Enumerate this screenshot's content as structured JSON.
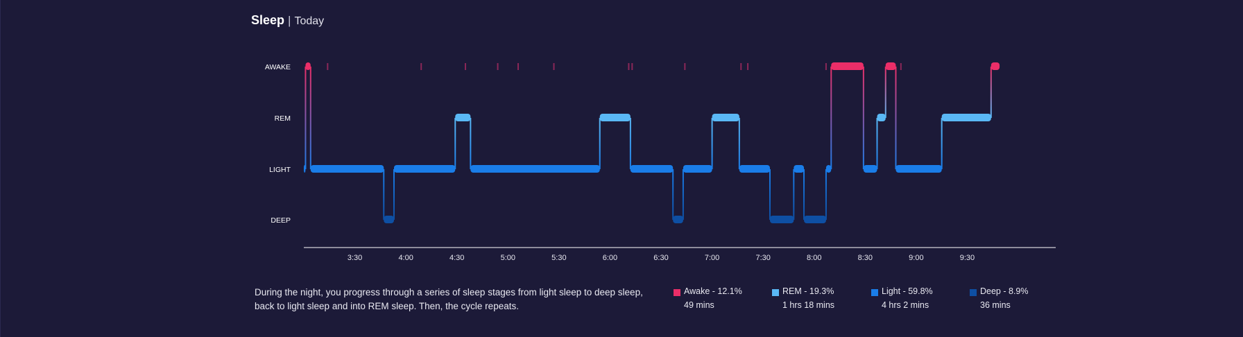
{
  "header": {
    "title": "Sleep",
    "separator": "|",
    "subtitle": "Today"
  },
  "colors": {
    "background": "#1c1a38",
    "awake": "#ea2e68",
    "rem": "#5ab8f5",
    "light": "#1a7de8",
    "deep": "#0e4fa3",
    "awake_tick": "#8a2758"
  },
  "chart_data": {
    "type": "line",
    "title": "Sleep",
    "subtitle": "Today",
    "stages": [
      "AWAKE",
      "REM",
      "LIGHT",
      "DEEP"
    ],
    "x_ticks": [
      "3:30",
      "4:00",
      "4:30",
      "5:00",
      "5:30",
      "6:00",
      "6:30",
      "7:00",
      "7:30",
      "8:00",
      "8:30",
      "9:00",
      "9:30"
    ],
    "x_range": [
      "3:00",
      "10:22"
    ],
    "grid": false,
    "segments": [
      {
        "stage": "LIGHT",
        "start": "3:00",
        "end": "3:01"
      },
      {
        "stage": "AWAKE",
        "start": "3:01",
        "end": "3:04"
      },
      {
        "stage": "LIGHT",
        "start": "3:04",
        "end": "3:47"
      },
      {
        "stage": "DEEP",
        "start": "3:47",
        "end": "3:53"
      },
      {
        "stage": "LIGHT",
        "start": "3:53",
        "end": "4:29"
      },
      {
        "stage": "REM",
        "start": "4:29",
        "end": "4:38"
      },
      {
        "stage": "LIGHT",
        "start": "4:38",
        "end": "5:54"
      },
      {
        "stage": "REM",
        "start": "5:54",
        "end": "6:12"
      },
      {
        "stage": "LIGHT",
        "start": "6:12",
        "end": "6:37"
      },
      {
        "stage": "DEEP",
        "start": "6:37",
        "end": "6:43"
      },
      {
        "stage": "LIGHT",
        "start": "6:43",
        "end": "7:00"
      },
      {
        "stage": "REM",
        "start": "7:00",
        "end": "7:16"
      },
      {
        "stage": "LIGHT",
        "start": "7:16",
        "end": "7:34"
      },
      {
        "stage": "DEEP",
        "start": "7:34",
        "end": "7:48"
      },
      {
        "stage": "LIGHT",
        "start": "7:48",
        "end": "7:54"
      },
      {
        "stage": "DEEP",
        "start": "7:54",
        "end": "8:07"
      },
      {
        "stage": "LIGHT",
        "start": "8:07",
        "end": "8:10"
      },
      {
        "stage": "AWAKE",
        "start": "8:10",
        "end": "8:29"
      },
      {
        "stage": "LIGHT",
        "start": "8:29",
        "end": "8:37"
      },
      {
        "stage": "REM",
        "start": "8:37",
        "end": "8:42"
      },
      {
        "stage": "AWAKE",
        "start": "8:42",
        "end": "8:48"
      },
      {
        "stage": "LIGHT",
        "start": "8:48",
        "end": "9:15"
      },
      {
        "stage": "REM",
        "start": "9:15",
        "end": "9:44"
      },
      {
        "stage": "AWAKE",
        "start": "9:44",
        "end": "9:49"
      }
    ],
    "brief_awakenings": [
      "3:14",
      "4:09",
      "4:35",
      "4:54",
      "5:06",
      "5:27",
      "6:11",
      "6:13",
      "6:44",
      "7:17",
      "7:21",
      "8:07",
      "8:51"
    ],
    "summary": [
      {
        "stage": "Awake",
        "percent": 12.1,
        "label": "Awake - 12.1%",
        "duration": "49 mins"
      },
      {
        "stage": "REM",
        "percent": 19.3,
        "label": "REM - 19.3%",
        "duration": "1 hrs 18 mins"
      },
      {
        "stage": "Light",
        "percent": 59.8,
        "label": "Light - 59.8%",
        "duration": "4 hrs 2 mins"
      },
      {
        "stage": "Deep",
        "percent": 8.9,
        "label": "Deep - 8.9%",
        "duration": "36 mins"
      }
    ]
  },
  "description": "During the night, you progress through a series of sleep stages from light sleep to deep sleep, back to light sleep and into REM sleep. Then, the cycle repeats."
}
